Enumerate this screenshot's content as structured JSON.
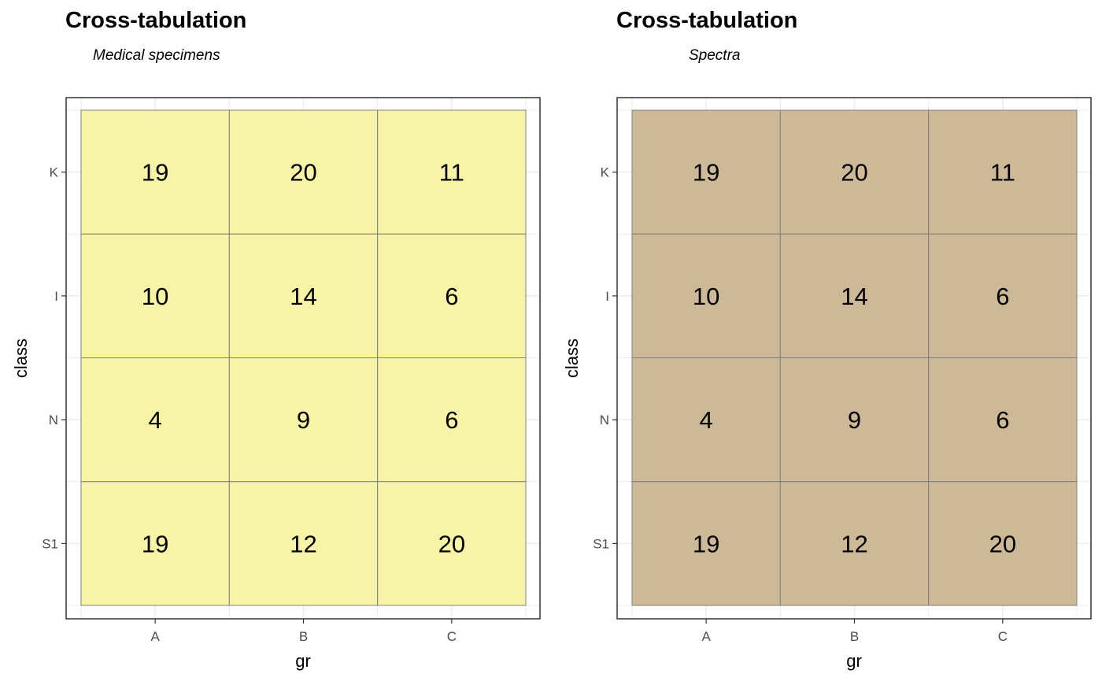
{
  "chart_data": [
    {
      "type": "heatmap",
      "title": "Cross-tabulation",
      "subtitle": "Medical specimens",
      "xlabel": "gr",
      "ylabel": "class",
      "x_categories": [
        "A",
        "B",
        "C"
      ],
      "y_categories": [
        "K",
        "I",
        "N",
        "S1"
      ],
      "fill_color": "#F7F4A8",
      "grid": true,
      "values": [
        [
          19,
          20,
          11
        ],
        [
          10,
          14,
          6
        ],
        [
          4,
          9,
          6
        ],
        [
          19,
          12,
          20
        ]
      ]
    },
    {
      "type": "heatmap",
      "title": "Cross-tabulation",
      "subtitle": "Spectra",
      "xlabel": "gr",
      "ylabel": "class",
      "x_categories": [
        "A",
        "B",
        "C"
      ],
      "y_categories": [
        "K",
        "I",
        "N",
        "S1"
      ],
      "fill_color": "#CDB997",
      "grid": true,
      "values": [
        [
          19,
          20,
          11
        ],
        [
          10,
          14,
          6
        ],
        [
          4,
          9,
          6
        ],
        [
          19,
          12,
          20
        ]
      ]
    }
  ]
}
